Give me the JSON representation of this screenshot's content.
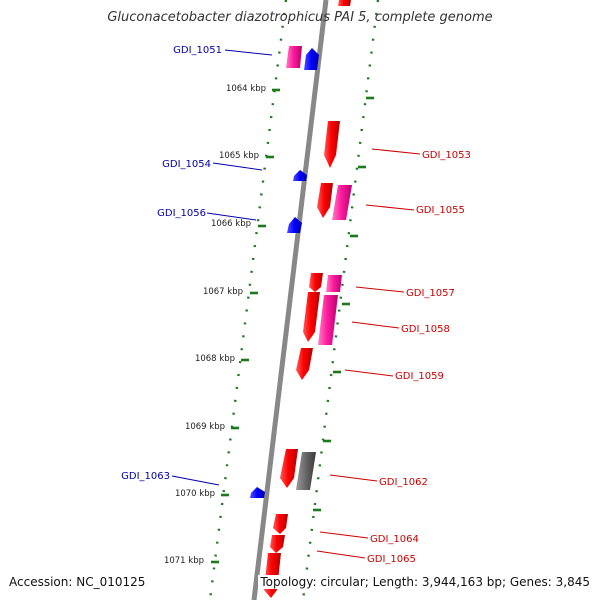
{
  "title": "Gluconacetobacter diazotrophicus PAI 5, complete genome",
  "footer": {
    "accession": "Accession: NC_010125",
    "summary": "Topology: circular; Length: 3,944,163 bp; Genes: 3,845"
  },
  "colors": {
    "backbone": "#888888",
    "minus_strand_label": "#0000aa",
    "plus_strand_label": "#cc0000",
    "gene_red": "#ff0000",
    "gene_pink": "#ff1c9e",
    "gene_blue": "#0000ff",
    "gene_gray": "#666666",
    "tick_green": "#1b7a1b"
  },
  "scale_ticks": [
    "1064 kbp",
    "1065 kbp",
    "1066 kbp",
    "1067 kbp",
    "1068 kbp",
    "1069 kbp",
    "1070 kbp",
    "1071 kbp"
  ],
  "minus_labels": [
    "GDI_1051",
    "GDI_1054",
    "GDI_1056",
    "GDI_1063"
  ],
  "plus_labels": [
    "GDI_1053",
    "GDI_1055",
    "GDI_1057",
    "GDI_1058",
    "GDI_1059",
    "GDI_1062",
    "GDI_1064",
    "GDI_1065"
  ]
}
